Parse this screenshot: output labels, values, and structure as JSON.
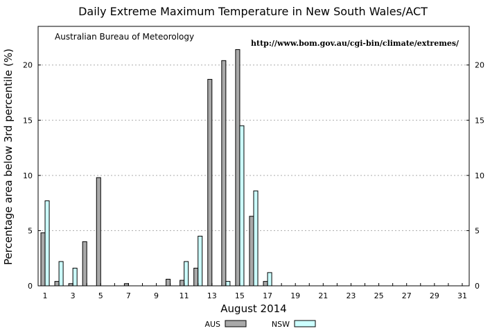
{
  "chart_data": {
    "type": "bar",
    "title": "Daily Extreme Maximum Temperature in New South Wales/ACT",
    "xlabel": "August 2014",
    "ylabel": "Percentage area below 3rd percentile (%)",
    "source_label": "Australian Bureau of Meteorology",
    "url_label": "http://www.bom.gov.au/cgi-bin/climate/extremes/",
    "xlim": [
      0.5,
      31.5
    ],
    "ylim": [
      0,
      23.5
    ],
    "x_ticks": [
      1,
      3,
      5,
      7,
      9,
      11,
      13,
      15,
      17,
      19,
      21,
      23,
      25,
      27,
      29,
      31
    ],
    "y_ticks": [
      0,
      5,
      10,
      15,
      20
    ],
    "grid": "horizontal dotted",
    "legend_position": "bottom-center",
    "categories": [
      1,
      2,
      3,
      4,
      5,
      6,
      7,
      8,
      9,
      10,
      11,
      12,
      13,
      14,
      15,
      16,
      17,
      18,
      19,
      20,
      21,
      22,
      23,
      24,
      25,
      26,
      27,
      28,
      29,
      30,
      31
    ],
    "series": [
      {
        "name": "AUS",
        "color": "#a9a9a9",
        "values": [
          4.8,
          0.4,
          0.2,
          4.0,
          9.8,
          0,
          0.2,
          0,
          0,
          0.6,
          0.5,
          1.6,
          18.7,
          20.4,
          21.4,
          6.3,
          0.4,
          0,
          0,
          0,
          0,
          0,
          0,
          0,
          0,
          0,
          0,
          0,
          0,
          0,
          0
        ]
      },
      {
        "name": "NSW",
        "color": "#ccffff",
        "values": [
          7.7,
          2.2,
          1.6,
          0,
          0,
          0,
          0,
          0,
          0,
          0,
          2.2,
          4.5,
          0,
          0.4,
          14.5,
          8.6,
          1.2,
          0,
          0,
          0,
          0,
          0,
          0,
          0,
          0,
          0,
          0,
          0,
          0,
          0,
          0
        ]
      }
    ]
  }
}
